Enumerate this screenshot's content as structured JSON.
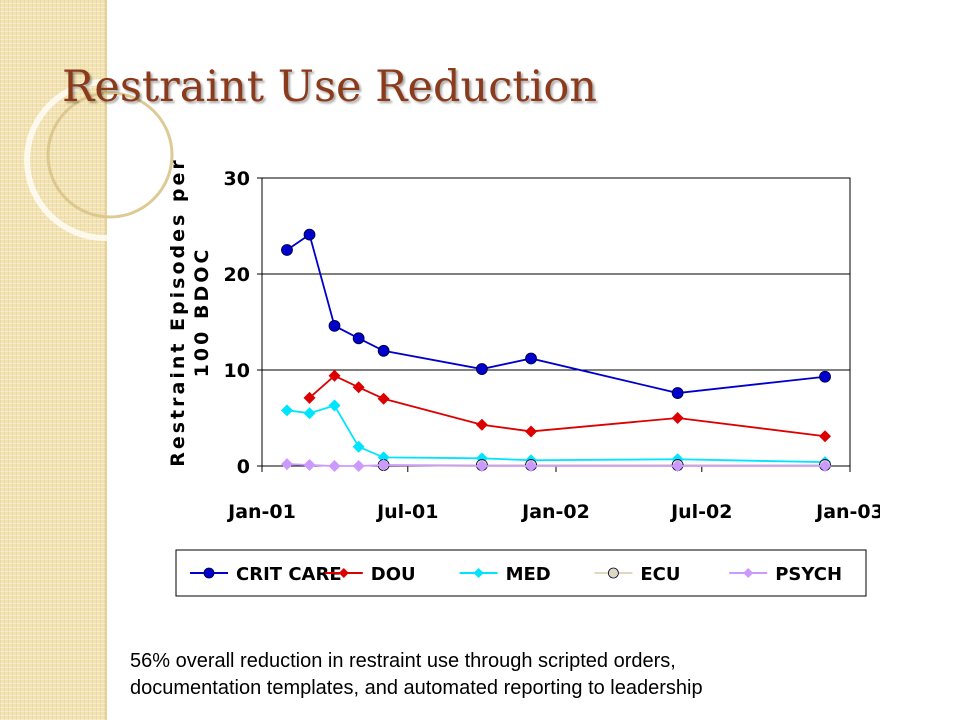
{
  "slide": {
    "title": "Restraint Use Reduction",
    "caption_lines": [
      "56% overall reduction in restraint use through scripted orders,",
      "documentation templates, and automated reporting to leadership"
    ]
  },
  "colors": {
    "title": "#8b3a1c",
    "side_band": "#f3e3b3",
    "crit_care": "#0000cc",
    "dou": "#dd0000",
    "med": "#00e5ff",
    "ecu": "#ddd8bf",
    "psych": "#cc99ff"
  },
  "chart_data": {
    "type": "line",
    "title": "",
    "ylabel": [
      "Restraint Episodes per",
      "100 BDOC"
    ],
    "xlabel": "",
    "ylim": [
      0,
      30
    ],
    "yticks": [
      0,
      10,
      20,
      30
    ],
    "xlim": [
      "2001-01-01",
      "2003-01-01"
    ],
    "xticks": [
      {
        "date": "2001-01-01",
        "label": "Jan-01"
      },
      {
        "date": "2001-07-01",
        "label": "Jul-01"
      },
      {
        "date": "2002-01-01",
        "label": "Jan-02"
      },
      {
        "date": "2002-07-01",
        "label": "Jul-02"
      },
      {
        "date": "2003-01-01",
        "label": "Jan-03"
      }
    ],
    "grid": "horizontal",
    "legend_position": "bottom",
    "series": [
      {
        "name": "CRIT CARE",
        "key": "crit_care",
        "marker": "circle",
        "points": [
          [
            "2001-02-01",
            22.5
          ],
          [
            "2001-03-01",
            24.1
          ],
          [
            "2001-04-01",
            14.6
          ],
          [
            "2001-05-01",
            13.3
          ],
          [
            "2001-06-01",
            12.0
          ],
          [
            "2001-10-01",
            10.1
          ],
          [
            "2001-12-01",
            11.2
          ],
          [
            "2002-06-01",
            7.6
          ],
          [
            "2002-12-01",
            9.3
          ]
        ]
      },
      {
        "name": "DOU",
        "key": "dou",
        "marker": "diamond",
        "points": [
          [
            "2001-03-01",
            7.1
          ],
          [
            "2001-04-01",
            9.4
          ],
          [
            "2001-05-01",
            8.2
          ],
          [
            "2001-06-01",
            7.0
          ],
          [
            "2001-10-01",
            4.3
          ],
          [
            "2001-12-01",
            3.6
          ],
          [
            "2002-06-01",
            5.0
          ],
          [
            "2002-12-01",
            3.1
          ]
        ]
      },
      {
        "name": "MED",
        "key": "med",
        "marker": "diamond",
        "points": [
          [
            "2001-02-01",
            5.8
          ],
          [
            "2001-03-01",
            5.5
          ],
          [
            "2001-04-01",
            6.3
          ],
          [
            "2001-05-01",
            2.0
          ],
          [
            "2001-06-01",
            0.9
          ],
          [
            "2001-10-01",
            0.8
          ],
          [
            "2001-12-01",
            0.6
          ],
          [
            "2002-06-01",
            0.7
          ],
          [
            "2002-12-01",
            0.4
          ]
        ]
      },
      {
        "name": "ECU",
        "key": "ecu",
        "marker": "circle",
        "points": [
          [
            "2001-06-01",
            0.1
          ],
          [
            "2001-10-01",
            0.1
          ],
          [
            "2001-12-01",
            0.1
          ],
          [
            "2002-06-01",
            0.1
          ],
          [
            "2002-12-01",
            0.1
          ]
        ]
      },
      {
        "name": "PSYCH",
        "key": "psych",
        "marker": "diamond",
        "points": [
          [
            "2001-02-01",
            0.2
          ],
          [
            "2001-03-01",
            0.1
          ],
          [
            "2001-04-01",
            0.0
          ],
          [
            "2001-05-01",
            0.0
          ],
          [
            "2001-06-01",
            0.1
          ],
          [
            "2001-10-01",
            0.0
          ],
          [
            "2001-12-01",
            0.0
          ],
          [
            "2002-06-01",
            0.0
          ],
          [
            "2002-12-01",
            0.0
          ]
        ]
      }
    ]
  }
}
